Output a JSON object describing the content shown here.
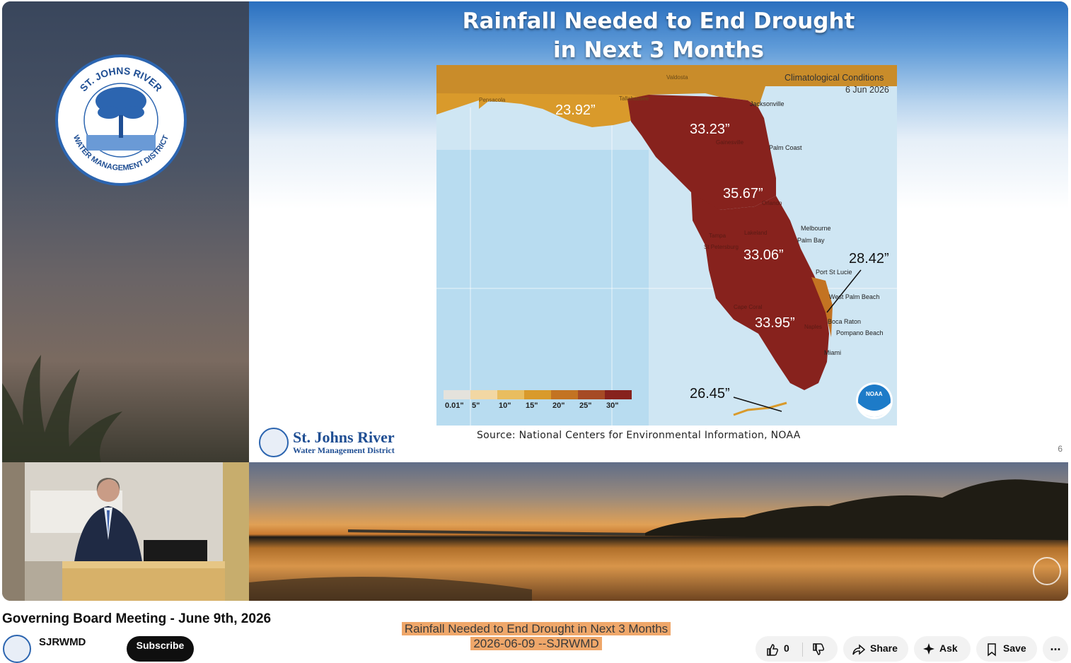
{
  "slide": {
    "title_line1": "Rainfall Needed to End Drought",
    "title_line2": "in Next 3 Months",
    "source": "Source: National Centers for Environmental Information, NOAA",
    "page_number": "6",
    "brand_name": "St. Johns River",
    "brand_subtitle": "Water Management District"
  },
  "left_logo": {
    "top_text": "ST. JOHNS RIVER",
    "bottom_text": "WATER MANAGEMENT DISTRICT"
  },
  "map": {
    "condition_label": "Climatological Conditions",
    "date_label": "6 Jun 2026",
    "region_values": [
      "23.92”",
      "33.23”",
      "35.67”",
      "33.06”",
      "28.42”",
      "33.95”",
      "26.45”"
    ],
    "cities": [
      "Jacksonville",
      "Palm Coast",
      "Melbourne",
      "Palm Bay",
      "Port St Lucie",
      "West Palm Beach",
      "Boca Raton",
      "Pompano Beach",
      "Miami",
      "Gainesville",
      "Orlando",
      "Lakeland",
      "Tampa",
      "St Petersburg",
      "Cape Coral",
      "Naples",
      "Tallahassee",
      "Valdosta",
      "Pensacola"
    ],
    "legend_labels": [
      "0.01\"",
      "5\"",
      "10\"",
      "15\"",
      "20\"",
      "25\"",
      "30\""
    ],
    "legend_colors": [
      "#e4e2dc",
      "#f2d7a3",
      "#e9bd5f",
      "#d99a2b",
      "#c37322",
      "#a64a25",
      "#87221d"
    ],
    "noaa_badge": "NOAA"
  },
  "video": {
    "title": "Governing Board Meeting - June 9th, 2026",
    "caption_line1": "Rainfall Needed to End Drought in Next 3 Months",
    "caption_line2": "2026-06-09 --SJRWMD"
  },
  "channel": {
    "name": "SJRWMD",
    "subscribe_label": "Subscribe"
  },
  "actions": {
    "like_count": "0",
    "share_label": "Share",
    "ask_label": "Ask",
    "save_label": "Save",
    "more_label": "..."
  }
}
